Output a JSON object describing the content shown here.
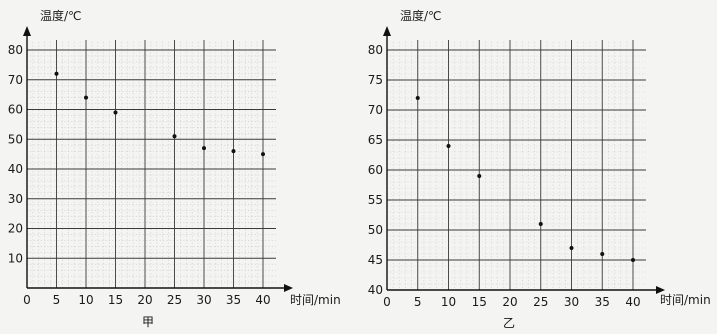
{
  "chart_data": [
    {
      "type": "scatter",
      "panel_label": "甲",
      "ylabel": "温度/℃",
      "xlabel": "时间/min",
      "xlim": [
        0,
        40
      ],
      "ylim": [
        0,
        80
      ],
      "x_ticks": [
        0,
        5,
        10,
        15,
        20,
        25,
        30,
        35,
        40
      ],
      "y_ticks": [
        10,
        20,
        30,
        40,
        50,
        60,
        70,
        80
      ],
      "grid": true,
      "points": [
        {
          "x": 5,
          "y": 72
        },
        {
          "x": 10,
          "y": 64
        },
        {
          "x": 15,
          "y": 59
        },
        {
          "x": 25,
          "y": 51
        },
        {
          "x": 30,
          "y": 47
        },
        {
          "x": 35,
          "y": 46
        },
        {
          "x": 40,
          "y": 45
        }
      ]
    },
    {
      "type": "scatter",
      "panel_label": "乙",
      "ylabel": "温度/℃",
      "xlabel": "时间/min",
      "xlim": [
        0,
        40
      ],
      "ylim": [
        40,
        80
      ],
      "x_ticks": [
        0,
        5,
        10,
        15,
        20,
        25,
        30,
        35,
        40
      ],
      "y_ticks": [
        40,
        45,
        50,
        55,
        60,
        65,
        70,
        75,
        80
      ],
      "grid": true,
      "points": [
        {
          "x": 5,
          "y": 72
        },
        {
          "x": 10,
          "y": 64
        },
        {
          "x": 15,
          "y": 59
        },
        {
          "x": 25,
          "y": 51
        },
        {
          "x": 30,
          "y": 47
        },
        {
          "x": 35,
          "y": 46
        },
        {
          "x": 40,
          "y": 45
        }
      ]
    }
  ]
}
